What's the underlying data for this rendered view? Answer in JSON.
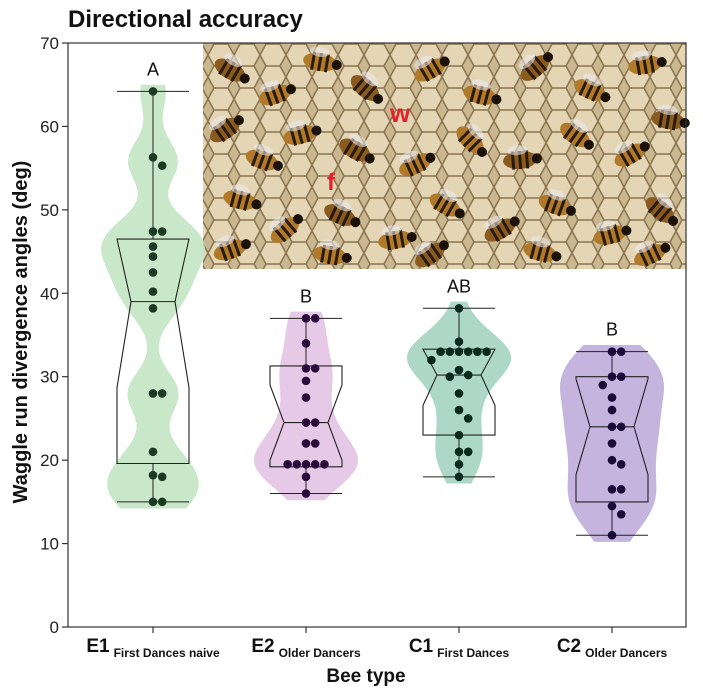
{
  "chart_data": {
    "type": "violin",
    "title": "Directional accuracy",
    "ylabel": "Waggle run divergence angles (deg)",
    "xlabel": "Bee type",
    "ylim": [
      0,
      70
    ],
    "yticks": [
      0,
      10,
      20,
      30,
      40,
      50,
      60,
      70
    ],
    "grid": false,
    "inset_photo": {
      "labels": [
        "w",
        "f"
      ],
      "label_color": "#e8202a"
    },
    "groups": [
      {
        "code": "E1",
        "subtitle": "First Dances naive",
        "letter": "A",
        "color": "#bfe3bf",
        "point_color": "#1a3a22",
        "min": 15,
        "q1": 19.6,
        "median": 39,
        "q3": 46.5,
        "max": 64.2,
        "points": [
          64.2,
          56.3,
          55.3,
          47.4,
          47.4,
          45.6,
          44.4,
          42.5,
          40.2,
          38.2,
          28,
          28,
          21,
          18.2,
          18,
          15,
          15
        ]
      },
      {
        "code": "E2",
        "subtitle": "Older Dancers",
        "letter": "B",
        "color": "#e2bfe2",
        "point_color": "#2a0a3a",
        "min": 16,
        "q1": 19.2,
        "median": 24.5,
        "q3": 31.3,
        "max": 37,
        "points": [
          37,
          37,
          34,
          31,
          31,
          29.5,
          27.5,
          24.5,
          24.5,
          22,
          22,
          19.5,
          19.5,
          19.5,
          19.5,
          19.5,
          18,
          16
        ]
      },
      {
        "code": "C1",
        "subtitle": "First Dances",
        "letter": "AB",
        "color": "#9fd1bd",
        "point_color": "#0a2a1f",
        "min": 18,
        "q1": 23,
        "median": 30.2,
        "q3": 33.3,
        "max": 38.2,
        "points": [
          38.2,
          34.2,
          33,
          33,
          33,
          33,
          33,
          33,
          32,
          30.8,
          30.2,
          30,
          28,
          26,
          25,
          23,
          21,
          21,
          19.5,
          18
        ]
      },
      {
        "code": "C2",
        "subtitle": "Older Dancers",
        "letter": "B",
        "color": "#bba7d8",
        "point_color": "#1a0a3a",
        "min": 11,
        "q1": 15,
        "median": 24,
        "q3": 30,
        "max": 33,
        "points": [
          33,
          33,
          30,
          30,
          29,
          27.5,
          26,
          24,
          24,
          22,
          20,
          19.5,
          16.5,
          16.5,
          14.5,
          13.5,
          11
        ]
      }
    ]
  }
}
